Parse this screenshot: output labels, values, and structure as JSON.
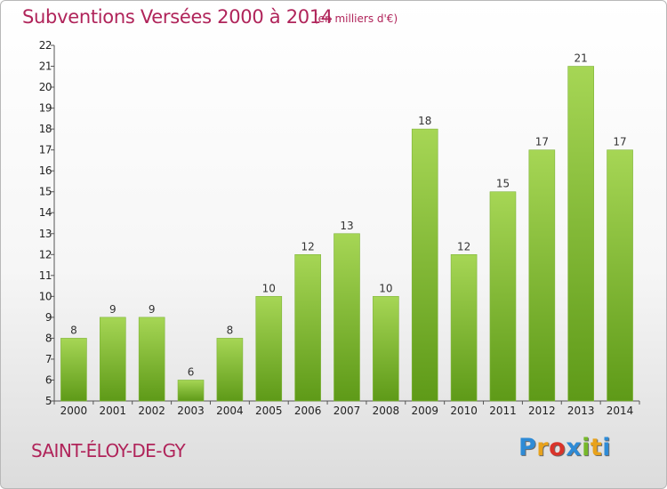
{
  "title": "Subventions Versées 2000 à 2014",
  "subtitle": "(en milliers d'€)",
  "town": "SAINT-ÉLOY-DE-GY",
  "logo": {
    "letters": [
      "P",
      "r",
      "o",
      "x",
      "i",
      "t",
      "i"
    ],
    "colors": [
      "#2e8bd6",
      "#e8a21c",
      "#d9342b",
      "#2e8bd6",
      "#76b82a",
      "#e8a21c",
      "#2e8bd6"
    ]
  },
  "colors": {
    "bar_top": "#a6d655",
    "bar_bottom": "#5e9a18",
    "title": "#b0245a"
  },
  "chart_data": {
    "type": "bar",
    "categories": [
      "2000",
      "2001",
      "2002",
      "2003",
      "2004",
      "2005",
      "2006",
      "2007",
      "2008",
      "2009",
      "2010",
      "2011",
      "2012",
      "2013",
      "2014"
    ],
    "values": [
      8,
      9,
      9,
      6,
      8,
      10,
      12,
      13,
      10,
      18,
      12,
      15,
      17,
      21,
      17
    ],
    "title": "Subventions Versées 2000 à 2014",
    "ylim": [
      5,
      22
    ],
    "yticks": [
      5,
      6,
      7,
      8,
      9,
      10,
      11,
      12,
      13,
      14,
      15,
      16,
      17,
      18,
      19,
      20,
      21,
      22
    ],
    "grid": false,
    "data_labels": true
  }
}
